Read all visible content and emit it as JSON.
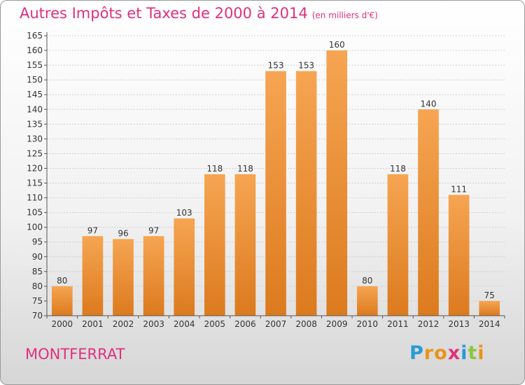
{
  "chart_data": {
    "type": "bar",
    "title": "Autres Impôts et Taxes de 2000 à 2014",
    "subtitle": "(en milliers d'€)",
    "categories": [
      "2000",
      "2001",
      "2002",
      "2003",
      "2004",
      "2005",
      "2006",
      "2007",
      "2008",
      "2009",
      "2010",
      "2011",
      "2012",
      "2013",
      "2014"
    ],
    "values": [
      80,
      97,
      96,
      97,
      103,
      118,
      118,
      153,
      153,
      160,
      80,
      118,
      140,
      111,
      75
    ],
    "ylim": [
      70,
      165
    ],
    "ytick_step": 5,
    "grid": true,
    "xlabel": "",
    "ylabel": "",
    "bar_color": "#f0963a"
  },
  "location": "MONTFERRAT",
  "logo": {
    "letters": [
      "P",
      "r",
      "o",
      "x",
      "i",
      "t",
      "i"
    ],
    "colors": [
      "#2a9ad8",
      "#e8941a",
      "#e8941a",
      "#e0307e",
      "#2a9ad8",
      "#8cc63e",
      "#e8941a"
    ]
  }
}
